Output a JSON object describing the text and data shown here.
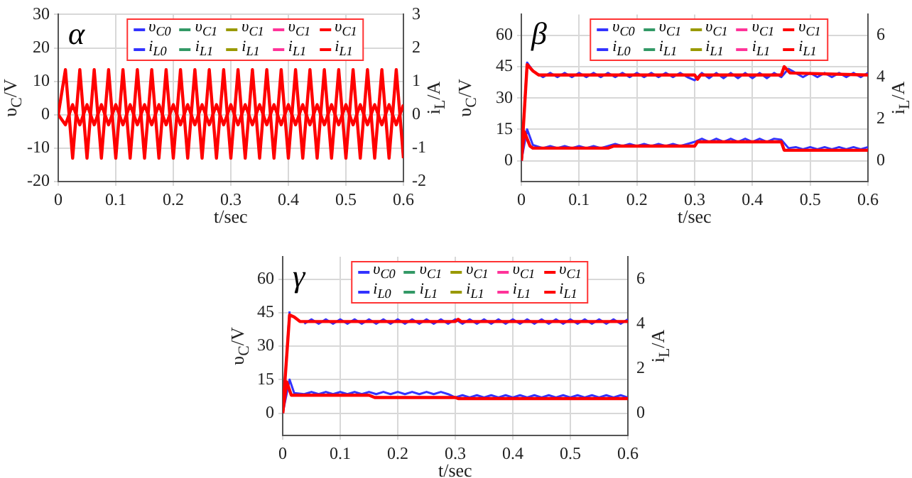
{
  "chart_data": [
    {
      "type": "line",
      "title": "α",
      "xlabel": "t/sec",
      "ylabel": "υ$_{C}$/V",
      "y2label": "i$_{L}$/A",
      "xlim": [
        0,
        0.6
      ],
      "xticks": [
        0,
        0.1,
        0.2,
        0.3,
        0.4,
        0.5,
        0.6
      ],
      "ylim": [
        -20,
        30
      ],
      "yticks": [
        -20,
        -10,
        0,
        10,
        20,
        30
      ],
      "y2lim": [
        -2,
        3
      ],
      "y2ticks": [
        -2,
        -1,
        0,
        1,
        2,
        3
      ],
      "grid": true,
      "legend": "top",
      "series": [
        {
          "name": "υ$_{C0}$",
          "color": "#3333ff"
        },
        {
          "name": "υ$_{C1}$",
          "color": "#339966"
        },
        {
          "name": "υ$_{C1}$",
          "color": "#999900"
        },
        {
          "name": "υ$_{C1}$",
          "color": "#ff3399"
        },
        {
          "name": "υ$_{C1}$",
          "color": "#ff0000",
          "x": [
            0,
            0.0125,
            0.025,
            0.0375,
            0.05,
            0.0625,
            0.075,
            0.0875,
            0.1,
            0.1125,
            0.125,
            0.1375,
            0.15,
            0.1625,
            0.175,
            0.1875,
            0.2,
            0.2125,
            0.225,
            0.2375,
            0.25,
            0.2625,
            0.275,
            0.2875,
            0.3,
            0.3125,
            0.325,
            0.3375,
            0.35,
            0.3625,
            0.375,
            0.3875,
            0.4,
            0.4125,
            0.425,
            0.4375,
            0.45,
            0.4625,
            0.475,
            0.4875,
            0.5,
            0.5125,
            0.525,
            0.5375,
            0.55,
            0.5625,
            0.575,
            0.5875,
            0.6
          ],
          "values": [
            0,
            13.5,
            -13,
            13.5,
            -13,
            13.5,
            -13,
            13.5,
            -13,
            13.5,
            -13,
            13.5,
            -13,
            13.5,
            -13,
            13.5,
            -13,
            13.5,
            -13,
            13.5,
            -13,
            13.5,
            -13,
            13.5,
            -13,
            13.5,
            -13,
            13.5,
            -13,
            13.5,
            -13,
            13.5,
            -13,
            13.5,
            -13,
            13.5,
            -13,
            13.5,
            -13,
            13.5,
            -13,
            13.5,
            -13,
            13.5,
            -13,
            13.5,
            -13,
            13.5,
            -13
          ]
        },
        {
          "name": "i$_{L0}$",
          "color": "#3333ff",
          "axis": "y2"
        },
        {
          "name": "i$_{L1}$",
          "color": "#339966",
          "axis": "y2"
        },
        {
          "name": "i$_{L1}$",
          "color": "#999900",
          "axis": "y2"
        },
        {
          "name": "i$_{L1}$",
          "color": "#ff3399",
          "axis": "y2"
        },
        {
          "name": "i$_{L1}$",
          "color": "#ff0000",
          "axis": "y2",
          "x": [
            0,
            0.0125,
            0.025,
            0.0375,
            0.05,
            0.0625,
            0.075,
            0.0875,
            0.1,
            0.1125,
            0.125,
            0.1375,
            0.15,
            0.1625,
            0.175,
            0.1875,
            0.2,
            0.2125,
            0.225,
            0.2375,
            0.25,
            0.2625,
            0.275,
            0.2875,
            0.3,
            0.3125,
            0.325,
            0.3375,
            0.35,
            0.3625,
            0.375,
            0.3875,
            0.4,
            0.4125,
            0.425,
            0.4375,
            0.45,
            0.4625,
            0.475,
            0.4875,
            0.5,
            0.5125,
            0.525,
            0.5375,
            0.55,
            0.5625,
            0.575,
            0.5875,
            0.6
          ],
          "values": [
            0,
            -0.3,
            0.3,
            -0.3,
            0.3,
            -0.3,
            0.3,
            -0.3,
            0.3,
            -0.3,
            0.3,
            -0.3,
            0.3,
            -0.3,
            0.3,
            -0.3,
            0.3,
            -0.3,
            0.3,
            -0.3,
            0.3,
            -0.3,
            0.3,
            -0.3,
            0.3,
            -0.3,
            0.3,
            -0.3,
            0.3,
            -0.3,
            0.3,
            -0.3,
            0.3,
            -0.3,
            0.3,
            -0.3,
            0.3,
            -0.3,
            0.3,
            -0.3,
            0.3,
            -0.3,
            0.3,
            -0.3,
            0.3,
            -0.3,
            0.3,
            -0.3,
            0.3
          ]
        }
      ]
    },
    {
      "type": "line",
      "title": "β",
      "xlabel": "t/sec",
      "ylabel": "υ$_{C}$/V",
      "y2label": "i$_{L}$/A",
      "xlim": [
        0,
        0.6
      ],
      "xticks": [
        0,
        0.1,
        0.2,
        0.3,
        0.4,
        0.5,
        0.6
      ],
      "ylim": [
        -10,
        70
      ],
      "yticks": [
        0,
        15,
        30,
        45,
        60
      ],
      "y2lim": [
        -1,
        7
      ],
      "y2ticks": [
        0,
        2,
        4,
        6
      ],
      "grid": true,
      "legend": "top",
      "series": [
        {
          "name": "υ$_{C0}$",
          "color": "#3333ff",
          "x": [
            0,
            0.01,
            0.02,
            0.0375,
            0.05,
            0.0625,
            0.075,
            0.0875,
            0.1,
            0.1125,
            0.125,
            0.1375,
            0.15,
            0.1625,
            0.175,
            0.1875,
            0.2,
            0.2125,
            0.225,
            0.2375,
            0.25,
            0.2625,
            0.275,
            0.2875,
            0.3,
            0.3125,
            0.325,
            0.3375,
            0.35,
            0.3625,
            0.375,
            0.3875,
            0.4,
            0.4125,
            0.425,
            0.4375,
            0.45,
            0.4625,
            0.475,
            0.4875,
            0.5,
            0.5125,
            0.525,
            0.5375,
            0.55,
            0.5625,
            0.575,
            0.5875,
            0.6
          ],
          "values": [
            0,
            47,
            43,
            40,
            42,
            40,
            42,
            40,
            42,
            40,
            42,
            40,
            42,
            40,
            42,
            40,
            42,
            40,
            42,
            40,
            42,
            40,
            42,
            40,
            38.5,
            42,
            39.5,
            42,
            39.5,
            42,
            39.5,
            42,
            39.5,
            42,
            39.5,
            42,
            40,
            44,
            42,
            40,
            42,
            40,
            42,
            40,
            42,
            40,
            42,
            40,
            42
          ]
        },
        {
          "name": "υ$_{C1}$",
          "color": "#339966"
        },
        {
          "name": "υ$_{C1}$",
          "color": "#999900"
        },
        {
          "name": "υ$_{C1}$",
          "color": "#ff3399"
        },
        {
          "name": "υ$_{C1}$",
          "color": "#ff0000",
          "x": [
            0,
            0.01,
            0.02,
            0.03,
            0.3,
            0.305,
            0.31,
            0.45,
            0.455,
            0.465,
            0.6
          ],
          "values": [
            0,
            46,
            43,
            41,
            41,
            39,
            41,
            41,
            45,
            42,
            41
          ]
        },
        {
          "name": "i$_{L0}$",
          "color": "#3333ff",
          "axis": "y2",
          "x": [
            0,
            0.01,
            0.02,
            0.0375,
            0.05,
            0.0625,
            0.075,
            0.0875,
            0.1,
            0.1125,
            0.125,
            0.1375,
            0.15,
            0.1625,
            0.175,
            0.1875,
            0.2,
            0.2125,
            0.225,
            0.2375,
            0.25,
            0.2625,
            0.275,
            0.2875,
            0.3,
            0.3125,
            0.325,
            0.3375,
            0.35,
            0.3625,
            0.375,
            0.3875,
            0.4,
            0.4125,
            0.425,
            0.4375,
            0.45,
            0.4625,
            0.475,
            0.4875,
            0.5,
            0.5125,
            0.525,
            0.5375,
            0.55,
            0.5625,
            0.575,
            0.5875,
            0.6
          ],
          "values": [
            0,
            1.5,
            0.75,
            0.6,
            0.7,
            0.6,
            0.7,
            0.6,
            0.7,
            0.6,
            0.7,
            0.6,
            0.7,
            0.8,
            0.7,
            0.8,
            0.7,
            0.8,
            0.7,
            0.8,
            0.7,
            0.8,
            0.7,
            0.8,
            0.9,
            1.05,
            0.9,
            1.05,
            0.9,
            1.05,
            0.9,
            1.05,
            0.9,
            1.05,
            0.9,
            1.05,
            1,
            0.6,
            0.65,
            0.55,
            0.65,
            0.55,
            0.65,
            0.55,
            0.65,
            0.55,
            0.65,
            0.55,
            0.65
          ]
        },
        {
          "name": "i$_{L1}$",
          "color": "#339966",
          "axis": "y2"
        },
        {
          "name": "i$_{L1}$",
          "color": "#999900",
          "axis": "y2"
        },
        {
          "name": "i$_{L1}$",
          "color": "#ff3399",
          "axis": "y2"
        },
        {
          "name": "i$_{L1}$",
          "color": "#ff0000",
          "axis": "y2",
          "x": [
            0,
            0.005,
            0.015,
            0.02,
            0.15,
            0.16,
            0.3,
            0.305,
            0.45,
            0.455,
            0.6
          ],
          "values": [
            0,
            1.4,
            0.7,
            0.6,
            0.6,
            0.7,
            0.7,
            0.9,
            0.9,
            0.5,
            0.5
          ]
        }
      ]
    },
    {
      "type": "line",
      "title": "γ",
      "xlabel": "t/sec",
      "ylabel": "υ$_{C}$/V",
      "y2label": "i$_{L}$/A",
      "xlim": [
        0,
        0.6
      ],
      "xticks": [
        0,
        0.1,
        0.2,
        0.3,
        0.4,
        0.5,
        0.6
      ],
      "ylim": [
        -10,
        70
      ],
      "yticks": [
        0,
        15,
        30,
        45,
        60
      ],
      "y2lim": [
        -1,
        7
      ],
      "y2ticks": [
        0,
        2,
        4,
        6
      ],
      "grid": true,
      "legend": "top",
      "series": [
        {
          "name": "υ$_{C0}$",
          "color": "#3333ff",
          "x": [
            0,
            0.012,
            0.02,
            0.0375,
            0.05,
            0.0625,
            0.075,
            0.0875,
            0.1,
            0.1125,
            0.125,
            0.1375,
            0.15,
            0.1625,
            0.175,
            0.1875,
            0.2,
            0.2125,
            0.225,
            0.2375,
            0.25,
            0.2625,
            0.275,
            0.2875,
            0.3,
            0.3125,
            0.325,
            0.3375,
            0.35,
            0.3625,
            0.375,
            0.3875,
            0.4,
            0.4125,
            0.425,
            0.4375,
            0.45,
            0.4625,
            0.475,
            0.4875,
            0.5,
            0.5125,
            0.525,
            0.5375,
            0.55,
            0.5625,
            0.575,
            0.5875,
            0.6
          ],
          "values": [
            0,
            45.5,
            null,
            40,
            42,
            40,
            42,
            40,
            42,
            40,
            42,
            40,
            42,
            40,
            42,
            40,
            42,
            40,
            42,
            40,
            42,
            40,
            42,
            40,
            42,
            40,
            42,
            40,
            42,
            40,
            42,
            40,
            42,
            40,
            42,
            40,
            42,
            40,
            42,
            40,
            42,
            40,
            42,
            40,
            42,
            40,
            42,
            40,
            42
          ]
        },
        {
          "name": "υ$_{C1}$",
          "color": "#339966"
        },
        {
          "name": "υ$_{C1}$",
          "color": "#999900"
        },
        {
          "name": "υ$_{C1}$",
          "color": "#ff3399"
        },
        {
          "name": "υ$_{C1}$",
          "color": "#ff0000",
          "x": [
            0,
            0.012,
            0.02,
            0.03,
            0.3,
            0.305,
            0.31,
            0.6
          ],
          "values": [
            0,
            44,
            43,
            41,
            41,
            42,
            41,
            41
          ]
        },
        {
          "name": "i$_{L0}$",
          "color": "#3333ff",
          "axis": "y2",
          "x": [
            0,
            0.012,
            0.02,
            0.0375,
            0.05,
            0.0625,
            0.075,
            0.0875,
            0.1,
            0.1125,
            0.125,
            0.1375,
            0.15,
            0.1625,
            0.175,
            0.1875,
            0.2,
            0.2125,
            0.225,
            0.2375,
            0.25,
            0.2625,
            0.275,
            0.2875,
            0.3,
            0.3125,
            0.325,
            0.3375,
            0.35,
            0.3625,
            0.375,
            0.3875,
            0.4,
            0.4125,
            0.425,
            0.4375,
            0.45,
            0.4625,
            0.475,
            0.4875,
            0.5,
            0.5125,
            0.525,
            0.5375,
            0.55,
            0.5625,
            0.575,
            0.5875,
            0.6
          ],
          "values": [
            0,
            1.5,
            0.9,
            0.85,
            0.95,
            0.85,
            0.95,
            0.85,
            0.95,
            0.85,
            0.95,
            0.85,
            0.95,
            0.85,
            0.95,
            0.85,
            0.95,
            0.85,
            0.95,
            0.85,
            0.95,
            0.85,
            0.95,
            0.85,
            0.7,
            0.8,
            0.7,
            0.8,
            0.7,
            0.8,
            0.7,
            0.8,
            0.7,
            0.8,
            0.7,
            0.8,
            0.7,
            0.8,
            0.7,
            0.8,
            0.7,
            0.8,
            0.7,
            0.8,
            0.7,
            0.8,
            0.7,
            0.8,
            0.7
          ]
        },
        {
          "name": "i$_{L1}$",
          "color": "#339966",
          "axis": "y2"
        },
        {
          "name": "i$_{L1}$",
          "color": "#999900",
          "axis": "y2"
        },
        {
          "name": "i$_{L1}$",
          "color": "#ff3399",
          "axis": "y2"
        },
        {
          "name": "i$_{L1}$",
          "color": "#ff0000",
          "axis": "y2",
          "x": [
            0,
            0.007,
            0.015,
            0.15,
            0.16,
            0.3,
            0.305,
            0.6
          ],
          "values": [
            0,
            1.4,
            0.8,
            0.8,
            0.7,
            0.7,
            0.65,
            0.65
          ]
        }
      ]
    }
  ]
}
